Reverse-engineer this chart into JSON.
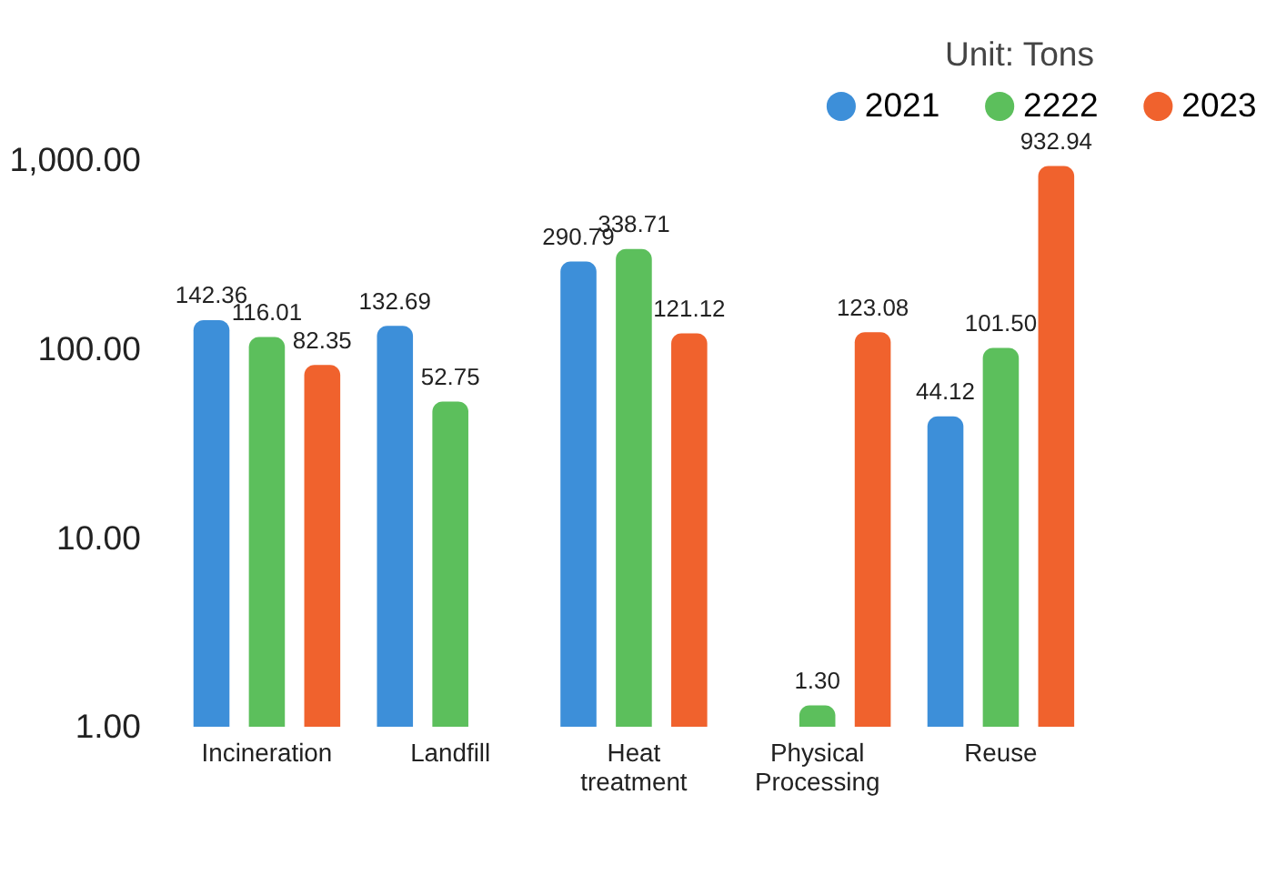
{
  "chart_data": {
    "type": "bar",
    "categories": [
      "Incineration",
      "Landfill",
      "Heat treatment",
      "Physical Processing",
      "Reuse"
    ],
    "series": [
      {
        "name": "2021",
        "color": "#3d8fd9",
        "values": [
          142.36,
          132.69,
          290.79,
          null,
          44.12
        ],
        "value_labels": [
          "142.36",
          "132.69",
          "290.79",
          null,
          "44.12"
        ]
      },
      {
        "name": "2222",
        "color": "#5cbf5c",
        "values": [
          116.01,
          52.75,
          338.71,
          1.3,
          101.5
        ],
        "value_labels": [
          "116.01",
          "52.75",
          "338.71",
          "1.30",
          "101.50"
        ]
      },
      {
        "name": "2023",
        "color": "#f0622d",
        "values": [
          82.35,
          null,
          121.12,
          123.08,
          932.94
        ],
        "value_labels": [
          "82.35",
          null,
          "121.12",
          "123.08",
          "932.94"
        ]
      }
    ],
    "log": "y",
    "ylim": [
      1,
      1000
    ],
    "yticks": [
      {
        "value": 1,
        "label": "1.00"
      },
      {
        "value": 10,
        "label": "10.00"
      },
      {
        "value": 100,
        "label": "100.00"
      },
      {
        "value": 1000,
        "label": "1,000.00"
      }
    ],
    "grid": false,
    "legend": "top right",
    "annotations": [
      "Unit: Tons"
    ]
  }
}
